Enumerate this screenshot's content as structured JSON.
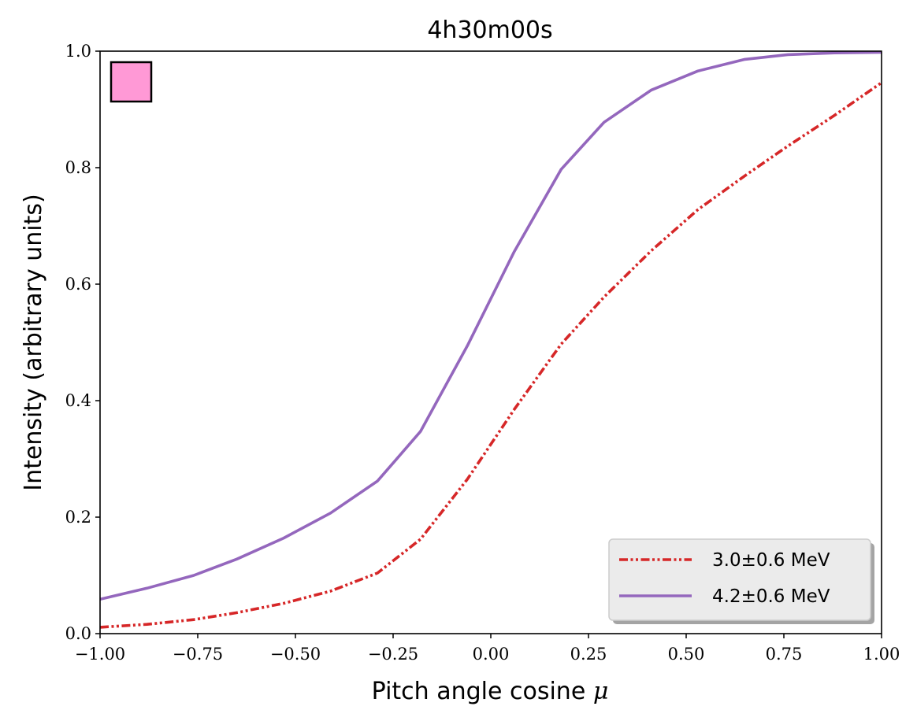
{
  "chart_data": {
    "type": "line",
    "title": "4h30m00s",
    "xlabel_prefix": "Pitch angle cosine ",
    "xlabel_symbol": "μ",
    "ylabel": "Intensity (arbitrary units)",
    "xlim": [
      -1.0,
      1.0
    ],
    "ylim": [
      0.0,
      1.0
    ],
    "xticks": [
      -1.0,
      -0.75,
      -0.5,
      -0.25,
      0.0,
      0.25,
      0.5,
      0.75,
      1.0
    ],
    "xtick_labels": [
      "−1.00",
      "−0.75",
      "−0.50",
      "−0.25",
      "0.00",
      "0.25",
      "0.50",
      "0.75",
      "1.00"
    ],
    "yticks": [
      0.0,
      0.2,
      0.4,
      0.6,
      0.8,
      1.0
    ],
    "ytick_labels": [
      "0.0",
      "0.2",
      "0.4",
      "0.6",
      "0.8",
      "1.0"
    ],
    "grid": false,
    "legend_position": "bottom-right",
    "marker_color": "#ff99d6",
    "series": [
      {
        "name": "3.0±0.6 MeV",
        "color": "#d62728",
        "style": "dashdotdot",
        "x": [
          -1.0,
          -0.88,
          -0.76,
          -0.65,
          -0.53,
          -0.41,
          -0.29,
          -0.18,
          -0.06,
          0.06,
          0.18,
          0.29,
          0.41,
          0.53,
          0.65,
          0.76,
          0.88,
          1.0
        ],
        "y": [
          0.011,
          0.016,
          0.024,
          0.036,
          0.052,
          0.073,
          0.104,
          0.162,
          0.265,
          0.385,
          0.497,
          0.578,
          0.657,
          0.728,
          0.786,
          0.837,
          0.89,
          0.946
        ]
      },
      {
        "name": "4.2±0.6 MeV",
        "color": "#9467bd",
        "style": "solid",
        "x": [
          -1.0,
          -0.88,
          -0.76,
          -0.65,
          -0.53,
          -0.41,
          -0.29,
          -0.18,
          -0.06,
          0.06,
          0.18,
          0.29,
          0.41,
          0.53,
          0.65,
          0.76,
          0.88,
          1.0
        ],
        "y": [
          0.059,
          0.078,
          0.1,
          0.128,
          0.164,
          0.207,
          0.262,
          0.347,
          0.494,
          0.656,
          0.797,
          0.878,
          0.933,
          0.966,
          0.986,
          0.994,
          0.997,
          0.998
        ]
      }
    ]
  }
}
